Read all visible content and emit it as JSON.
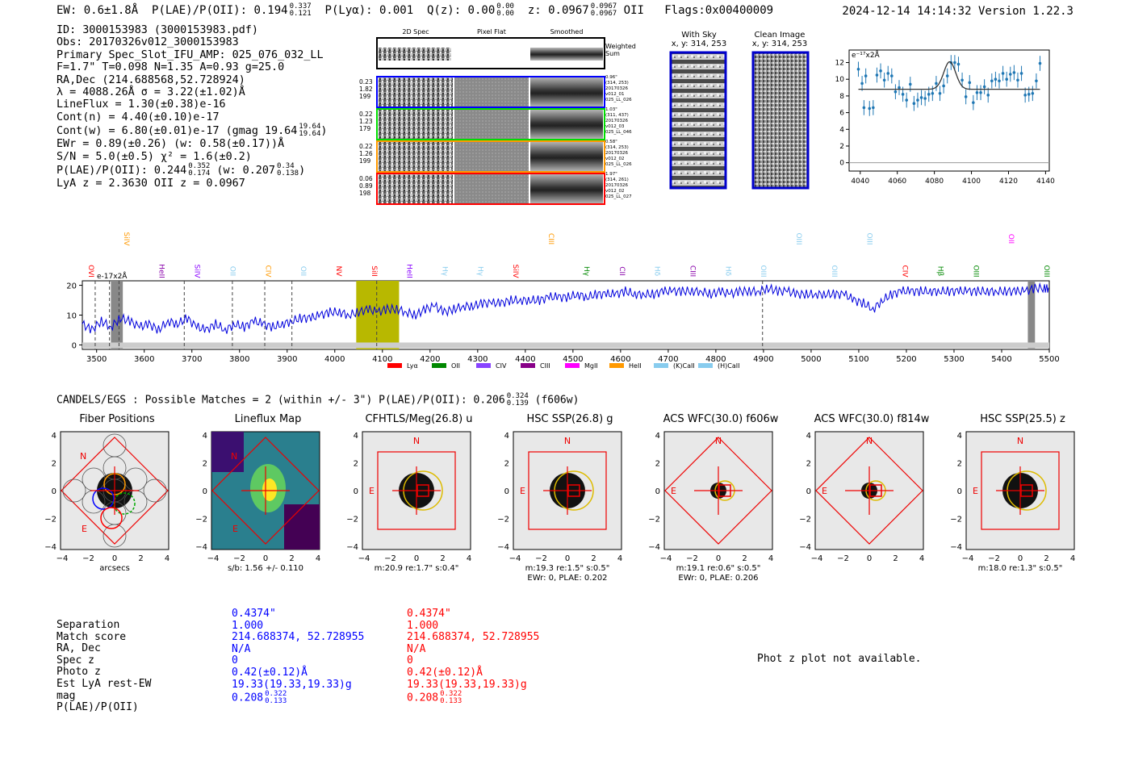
{
  "header": {
    "ew": "EW: 0.6±1.8Å",
    "plae_label": "P(LAE)/P(OII): 0.194",
    "plae_hi": "0.337",
    "plae_lo": "0.121",
    "plya": "P(Lyα): 0.001",
    "qz_label": "Q(z): 0.00",
    "qz_hi": "0.00",
    "qz_lo": "0.00",
    "z_label": "z: 0.0967",
    "z_hi": "0.0967",
    "z_lo": "0.0967",
    "z_line": "OII",
    "flags": "Flags:0x00400009",
    "datetime": "2024-12-14 14:14:32",
    "version": "Version 1.22.3"
  },
  "summary": {
    "id": "ID: 3000153983 (3000153983.pdf)",
    "obs": "Obs: 20170326v012_3000153983",
    "primary": "Primary Spec_Slot_IFU_AMP: 025_076_032_LL",
    "fwhm": "F=1.7\"  T=0.098  N=1.35  A=0.93  g=25.0",
    "radec": "RA,Dec (214.688568,52.728924)",
    "lambda": "λ = 4088.26Å  σ = 3.22(±1.02)Å",
    "lineflux": "LineFlux = 1.30(±0.38)e-16",
    "cont_n": "Cont(n) = 4.40(±0.10)e-17",
    "cont_w": "Cont(w) = 6.80(±0.01)e-17 (gmag 19.64",
    "gmag_hi": "19.64",
    "gmag_lo": "19.64",
    "ewr": "EWr = 0.89(±0.26) (w: 0.58(±0.17))Å",
    "sn": "S/N = 5.0(±0.5)  χ² = 1.6(±0.2)",
    "plae": "P(LAE)/P(OII): 0.244",
    "plae_hi": "0.352",
    "plae_lo": "0.174",
    "plae_w": "(w: 0.207",
    "plae_w_hi": "0.34",
    "plae_w_lo": "0.138",
    "lyaz": "LyA z = 2.3630   OII z = 0.0967"
  },
  "spec_thumbs": {
    "col_titles": [
      "2D Spec",
      "Pixel Flat",
      "Smoothed"
    ],
    "weighted": "Weighted Sum",
    "rows": [
      {
        "left": [
          "0.23",
          "1.82",
          "199"
        ],
        "right": [
          "0.96\"",
          "(314, 253)",
          "20170326",
          "v012_01",
          "025_LL_026"
        ],
        "color": "#0000ff"
      },
      {
        "left": [
          "0.22",
          "1.23",
          "179"
        ],
        "right": [
          "1.03\"",
          "(311, 437)",
          "20170326",
          "v012_03",
          "025_LL_046"
        ],
        "color": "#00dd00"
      },
      {
        "left": [
          "0.22",
          "1.26",
          "199"
        ],
        "right": [
          "0.58\"",
          "(314, 253)",
          "20170326",
          "v012_02",
          "025_LL_026"
        ],
        "color": "#ff9900"
      },
      {
        "left": [
          "0.06",
          "0.89",
          "198"
        ],
        "right": [
          "1.97\"",
          "(314, 261)",
          "20170326",
          "v012_02",
          "025_LL_027"
        ],
        "color": "#ff0000"
      }
    ]
  },
  "sky_panels": {
    "with_sky": "With Sky",
    "with_sky_xy": "x, y: 314, 253",
    "clean": "Clean Image",
    "clean_xy": "x, y: 314, 253"
  },
  "fit_plot": {
    "unit": "e⁻¹⁷x2Å",
    "xticks": [
      "4040",
      "4060",
      "4080",
      "4100",
      "4120",
      "4140"
    ],
    "yticks": [
      "0",
      "2",
      "4",
      "6",
      "8",
      "10",
      "12"
    ]
  },
  "chart_data": [
    {
      "type": "scatter",
      "title": "Emission line fit",
      "ylabel": "e-17x2Å",
      "xlim": [
        4034,
        4142
      ],
      "ylim": [
        -1,
        13.5
      ],
      "x": [
        4039,
        4041,
        4042,
        4043,
        4045,
        4047,
        4049,
        4051,
        4053,
        4055,
        4057,
        4059,
        4061,
        4063,
        4065,
        4067,
        4069,
        4071,
        4073,
        4075,
        4077,
        4079,
        4081,
        4083,
        4085,
        4087,
        4089,
        4091,
        4093,
        4095,
        4097,
        4099,
        4101,
        4103,
        4105,
        4107,
        4109,
        4111,
        4113,
        4115,
        4117,
        4119,
        4121,
        4123,
        4125,
        4127,
        4129,
        4131,
        4133,
        4135,
        4137
      ],
      "y": [
        11.2,
        9.5,
        6.6,
        10.4,
        6.5,
        6.6,
        10.5,
        11.0,
        9.9,
        10.7,
        10.4,
        8.5,
        9.0,
        8.2,
        7.5,
        9.4,
        7.1,
        7.5,
        7.8,
        7.7,
        8.2,
        8.3,
        9.5,
        8.3,
        9.2,
        10.4,
        12.0,
        12.0,
        11.8,
        9.9,
        7.9,
        9.6,
        7.2,
        8.4,
        8.4,
        9.1,
        8.1,
        9.8,
        10.0,
        9.8,
        10.7,
        10.0,
        10.6,
        10.8,
        9.9,
        10.7,
        8.1,
        8.2,
        8.3,
        9.8,
        11.9
      ],
      "fit": {
        "continuum": 8.8,
        "center": 4088.26,
        "sigma": 3.22,
        "amplitude": 3.3
      }
    },
    {
      "type": "line",
      "title": "Full spectrum",
      "ylabel": "e-17x2Å",
      "xlim": [
        3470,
        5500
      ],
      "ylim": [
        -1.5,
        21.5
      ],
      "xticks": [
        "3500",
        "3600",
        "3700",
        "3800",
        "3900",
        "4000",
        "4100",
        "4200",
        "4300",
        "4400",
        "4500",
        "4600",
        "4700",
        "4800",
        "4900",
        "5000",
        "5100",
        "5200",
        "5300",
        "5400",
        "5500"
      ],
      "yticks": [
        "0",
        "10",
        "20"
      ],
      "x": [
        3470,
        3490,
        3510,
        3530,
        3550,
        3570,
        3590,
        3610,
        3630,
        3650,
        3670,
        3690,
        3710,
        3730,
        3750,
        3770,
        3790,
        3810,
        3830,
        3850,
        3870,
        3890,
        3910,
        3930,
        3950,
        3970,
        3990,
        4010,
        4030,
        4050,
        4070,
        4090,
        4110,
        4130,
        4150,
        4170,
        4190,
        4210,
        4230,
        4250,
        4270,
        4290,
        4310,
        4330,
        4350,
        4370,
        4390,
        4410,
        4430,
        4450,
        4470,
        4490,
        4510,
        4530,
        4550,
        4570,
        4590,
        4610,
        4630,
        4650,
        4670,
        4690,
        4710,
        4730,
        4750,
        4770,
        4790,
        4810,
        4830,
        4850,
        4870,
        4890,
        4910,
        4930,
        4950,
        4970,
        4990,
        5010,
        5030,
        5050,
        5070,
        5090,
        5110,
        5130,
        5150,
        5170,
        5190,
        5210,
        5230,
        5250,
        5270,
        5290,
        5310,
        5330,
        5350,
        5370,
        5390,
        5410,
        5430,
        5450,
        5470,
        5490,
        5500
      ],
      "y": [
        7,
        5,
        8,
        6,
        9,
        8,
        6,
        7,
        5,
        8,
        7,
        9,
        6,
        5,
        7,
        5,
        7,
        6,
        8,
        7,
        6,
        7,
        8,
        9,
        9,
        10,
        11,
        11,
        10,
        11,
        12,
        11,
        12,
        12,
        11,
        10,
        12,
        13,
        11,
        12,
        13,
        13,
        14,
        14,
        14,
        15,
        15,
        15,
        15,
        16,
        16,
        16,
        17,
        16,
        17,
        17,
        17,
        18,
        17,
        17,
        17,
        18,
        18,
        18,
        18,
        18,
        17,
        18,
        17,
        18,
        18,
        18,
        19,
        18,
        18,
        17,
        17,
        17,
        17,
        17,
        17,
        15,
        14,
        12,
        15,
        17,
        18,
        18,
        18,
        18,
        18,
        18,
        18,
        18,
        18,
        18,
        18,
        18,
        18,
        18,
        19,
        19,
        19
      ],
      "markers": [
        3497,
        3527,
        3547,
        3684,
        3785,
        3853,
        3910,
        4088,
        4898
      ],
      "highlight": [
        4045,
        4135
      ],
      "lines": [
        {
          "name": "OVI",
          "color": "#ff0000",
          "top": false
        },
        {
          "name": "SiIV",
          "color": "#ff9900",
          "top": true
        },
        {
          "name": "HeII",
          "color": "#8800aa",
          "top": false
        },
        {
          "name": "SiIV",
          "color": "#8800ff",
          "top": false
        },
        {
          "name": "OII",
          "color": "#88ccee",
          "top": false
        },
        {
          "name": "CIV",
          "color": "#ff9900",
          "top": false
        },
        {
          "name": "OII",
          "color": "#88ccee",
          "top": false
        },
        {
          "name": "NV",
          "color": "#ff0000",
          "top": false
        },
        {
          "name": "SiII",
          "color": "#ff0000",
          "top": false
        },
        {
          "name": "HeII",
          "color": "#8800ff",
          "top": false
        },
        {
          "name": "Hγ",
          "color": "#88ccee",
          "top": false
        },
        {
          "name": "Hγ",
          "color": "#88ccee",
          "top": false
        },
        {
          "name": "SiIV",
          "color": "#ff0000",
          "top": false
        },
        {
          "name": "CIII",
          "color": "#ff9900",
          "top": true
        },
        {
          "name": "Hγ",
          "color": "#008800",
          "top": false
        },
        {
          "name": "CII",
          "color": "#8800aa",
          "top": false
        },
        {
          "name": "Hδ",
          "color": "#88ccee",
          "top": false
        },
        {
          "name": "CIII",
          "color": "#8800aa",
          "top": false
        },
        {
          "name": "Hδ",
          "color": "#88ccee",
          "top": false
        },
        {
          "name": "OIII",
          "color": "#88ccee",
          "top": false
        },
        {
          "name": "OIII",
          "color": "#88ccee",
          "top": true
        },
        {
          "name": "OIII",
          "color": "#88ccee",
          "top": false
        },
        {
          "name": "OIII",
          "color": "#88ccee",
          "top": true
        },
        {
          "name": "CIV",
          "color": "#ff0000",
          "top": false
        },
        {
          "name": "Hβ",
          "color": "#008800",
          "top": false
        },
        {
          "name": "OIII",
          "color": "#008800",
          "top": false
        },
        {
          "name": "OII",
          "color": "#ff00ff",
          "top": true
        },
        {
          "name": "OIII",
          "color": "#008800",
          "top": false
        }
      ],
      "legend": [
        {
          "label": "Lyα",
          "color": "#ff0000"
        },
        {
          "label": "OII",
          "color": "#008800"
        },
        {
          "label": "CIV",
          "color": "#8844ff"
        },
        {
          "label": "CIII",
          "color": "#880088"
        },
        {
          "label": "MgII",
          "color": "#ff00ff"
        },
        {
          "label": "HeII",
          "color": "#ff9900"
        },
        {
          "label": "(K)CaII",
          "color": "#88ccee"
        },
        {
          "label": "(H)CaII",
          "color": "#88ccee"
        }
      ]
    }
  ],
  "candels": {
    "line": "CANDELS/EGS : Possible Matches = 2 (within +/- 3\")  P(LAE)/P(OII): 0.206",
    "hi": "0.324",
    "lo": "0.139",
    "filter": "(f606w)"
  },
  "cutouts": [
    {
      "title": "Fiber Positions",
      "caption": "arcsecs",
      "caption2": ""
    },
    {
      "title": "Lineflux Map",
      "caption": "s/b: 1.56 +/- 0.110",
      "caption2": ""
    },
    {
      "title": "CFHTLS/Meg(26.8) u",
      "caption": "m:20.9  re:1.7\"  s:0.4\"",
      "caption2": ""
    },
    {
      "title": "HSC SSP(26.8) g",
      "caption": "m:19.3  re:1.5\"  s:0.5\"",
      "caption2": "EWr: 0, PLAE: 0.202"
    },
    {
      "title": "ACS WFC(30.0) f606w",
      "caption": "m:19.1  re:0.6\"  s:0.5\"",
      "caption2": "EWr: 0, PLAE: 0.206"
    },
    {
      "title": "ACS WFC(30.0) f814w",
      "caption": "",
      "caption2": ""
    },
    {
      "title": "HSC SSP(25.5) z",
      "caption": "m:18.0  re:1.3\"  s:0.5\"",
      "caption2": ""
    }
  ],
  "cutout_ticks": {
    "x": [
      "−4",
      "−2",
      "0",
      "2",
      "4"
    ],
    "y": [
      "4",
      "2",
      "0",
      "−2",
      "−4"
    ],
    "n": "N",
    "e": "E"
  },
  "match": {
    "labels": [
      "Separation",
      "Match score",
      "RA, Dec",
      "Spec z",
      "Photo z",
      "Est LyA rest-EW",
      "mag",
      "P(LAE)/P(OII)"
    ],
    "blue": [
      "0.4374\"",
      "1.000",
      "214.688374, 52.728955",
      "N/A",
      "0",
      "0.42(±0.12)Å",
      "19.33(19.33,19.33)g",
      "0.208"
    ],
    "blue_hi": "0.322",
    "blue_lo": "0.133",
    "red": [
      "0.4374\"",
      "1.000",
      "214.688374, 52.728955",
      "N/A",
      "0",
      "0.42(±0.12)Å",
      "19.33(19.33,19.33)g",
      "0.208"
    ],
    "red_hi": "0.322",
    "red_lo": "0.133"
  },
  "phot_z": "Phot z plot not available."
}
